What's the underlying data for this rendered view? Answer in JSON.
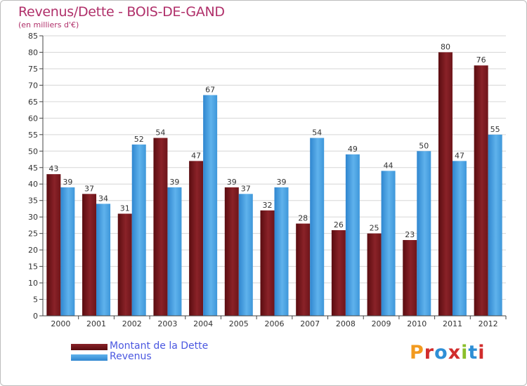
{
  "title": "Revenus/Dette - BOIS-DE-GAND",
  "subtitle": "(en milliers d'€)",
  "legend": {
    "debt_label": "Montant de la Dette",
    "revenue_label": "Revenus"
  },
  "logo": {
    "text": "Proxiti",
    "letter_colors": [
      "#f29a1f",
      "#d12d2d",
      "#2e8fd6",
      "#d12d2d",
      "#8bbf2b",
      "#2e8fd6",
      "#d12d2d"
    ]
  },
  "colors": {
    "debt": "#7a1a1f",
    "revenue": "#4aa3e3",
    "title": "#b0306a",
    "legend_text": "#4a57e0"
  },
  "chart_data": {
    "type": "bar",
    "categories": [
      "2000",
      "2001",
      "2002",
      "2003",
      "2004",
      "2005",
      "2006",
      "2007",
      "2008",
      "2009",
      "2010",
      "2011",
      "2012"
    ],
    "series": [
      {
        "name": "Montant de la Dette",
        "values": [
          43,
          37,
          31,
          54,
          47,
          39,
          32,
          28,
          26,
          25,
          23,
          80,
          76
        ]
      },
      {
        "name": "Revenus",
        "values": [
          39,
          34,
          52,
          39,
          67,
          37,
          39,
          54,
          49,
          44,
          50,
          47,
          55
        ]
      }
    ],
    "ylim": [
      0,
      85
    ],
    "yticks": [
      0,
      5,
      10,
      15,
      20,
      25,
      30,
      35,
      40,
      45,
      50,
      55,
      60,
      65,
      70,
      75,
      80,
      85
    ],
    "grid": true,
    "legend_position": "bottom-left"
  }
}
